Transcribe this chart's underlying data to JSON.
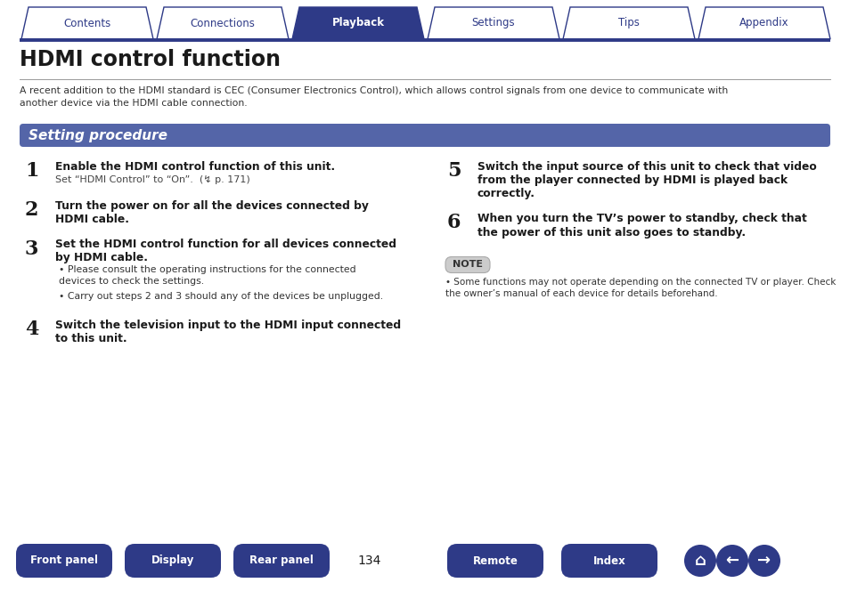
{
  "title": "HDMI control function",
  "bg_color": "#ffffff",
  "tab_labels": [
    "Contents",
    "Connections",
    "Playback",
    "Settings",
    "Tips",
    "Appendix"
  ],
  "active_tab": 2,
  "tab_color_active": "#2e3a87",
  "tab_color_inactive": "#ffffff",
  "tab_text_color_active": "#ffffff",
  "tab_text_color_inactive": "#2e3a87",
  "tab_border_color": "#2e3a87",
  "section_header": "Setting procedure",
  "section_header_bg": "#5465a8",
  "section_header_text_color": "#ffffff",
  "intro_text": "A recent addition to the HDMI standard is CEC (Consumer Electronics Control), which allows control signals from one device to communicate with\nanother device via the HDMI cable connection.",
  "steps_left": [
    {
      "num": "1",
      "bold": "Enable the HDMI control function of this unit.",
      "normal": "Set “HDMI Control” to “On”.  (↯ p. 171)",
      "sub_bullets": []
    },
    {
      "num": "2",
      "bold": "Turn the power on for all the devices connected by\nHDMI cable.",
      "normal": "",
      "sub_bullets": []
    },
    {
      "num": "3",
      "bold": "Set the HDMI control function for all devices connected\nby HDMI cable.",
      "normal": "",
      "sub_bullets": [
        "Please consult the operating instructions for the connected\ndevices to check the settings.",
        "Carry out steps 2 and 3 should any of the devices be unplugged."
      ]
    },
    {
      "num": "4",
      "bold": "Switch the television input to the HDMI input connected\nto this unit.",
      "normal": "",
      "sub_bullets": []
    }
  ],
  "steps_right": [
    {
      "num": "5",
      "bold": "Switch the input source of this unit to check that video\nfrom the player connected by HDMI is played back\ncorrectly.",
      "normal": "",
      "sub_bullets": []
    },
    {
      "num": "6",
      "bold": "When you turn the TV’s power to standby, check that\nthe power of this unit also goes to standby.",
      "normal": "",
      "sub_bullets": []
    }
  ],
  "note_label": "NOTE",
  "note_text": "Some functions may not operate depending on the connected TV or player. Check\nthe owner’s manual of each device for details beforehand.",
  "page_number": "134",
  "footer_buttons": [
    "Front panel",
    "Display",
    "Rear panel",
    "Remote",
    "Index"
  ],
  "footer_btn_color": "#2e3a87",
  "footer_btn_text_color": "#ffffff",
  "hr_color": "#2e3a87",
  "tab_line_color": "#2e3a87"
}
